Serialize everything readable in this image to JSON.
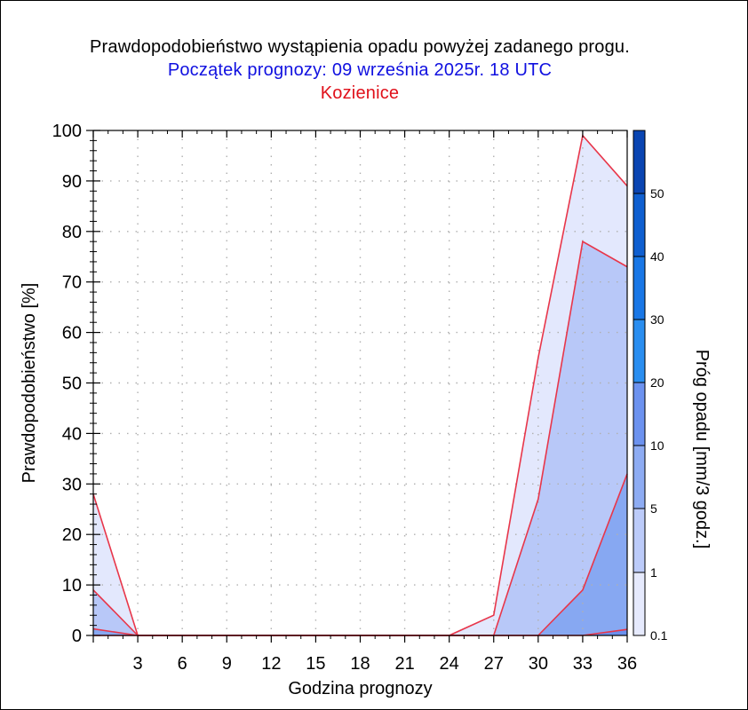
{
  "header": {
    "title": "Prawdopodobieństwo wystąpienia opadu powyżej zadanego progu.",
    "subtitle": "Początek prognozy: 09 września 2025r. 18 UTC",
    "location": "Kozienice"
  },
  "colors": {
    "title": "#000000",
    "subtitle": "#1010e0",
    "location": "#e0101a",
    "outline": "#e8364a",
    "grid": "#b0b0b0"
  },
  "chart_data": {
    "type": "area",
    "title": "Prawdopodobieństwo wystąpienia opadu powyżej zadanego progu.",
    "xlabel": "Godzina prognozy",
    "ylabel": "Prawdopodobieństwo [%]",
    "xlim": [
      0,
      36
    ],
    "ylim": [
      0,
      100
    ],
    "x": [
      0,
      3,
      6,
      9,
      12,
      15,
      18,
      21,
      24,
      27,
      30,
      33,
      36
    ],
    "x_tick_labels": [
      "3",
      "6",
      "9",
      "12",
      "15",
      "18",
      "21",
      "24",
      "27",
      "30",
      "33",
      "36"
    ],
    "y_ticks": [
      0,
      10,
      20,
      30,
      40,
      50,
      60,
      70,
      80,
      90,
      100
    ],
    "grid": true,
    "series": [
      {
        "name": "0.1",
        "color": "#e3e8fd",
        "values": [
          28,
          0,
          0,
          0,
          0,
          0,
          0,
          0,
          0,
          4,
          55,
          99,
          89
        ]
      },
      {
        "name": "1",
        "color": "#b8c8f8",
        "values": [
          9,
          0,
          0,
          0,
          0,
          0,
          0,
          0,
          0,
          0,
          27,
          78,
          73
        ]
      },
      {
        "name": "5",
        "color": "#87a8f2",
        "values": [
          1.3,
          0,
          0,
          0,
          0,
          0,
          0,
          0,
          0,
          0,
          0,
          9,
          32
        ]
      },
      {
        "name": "10",
        "color": "#6a90ee",
        "values": [
          0,
          0,
          0,
          0,
          0,
          0,
          0,
          0,
          0,
          0,
          0,
          0,
          1.2
        ]
      }
    ],
    "colorbar": {
      "title": "Próg opadu [mm/3 godz.]",
      "labels": [
        "0.1",
        "1",
        "5",
        "10",
        "20",
        "30",
        "40",
        "50"
      ],
      "colors": [
        "#e6eafd",
        "#bccbf9",
        "#8eacf3",
        "#6c92ef",
        "#2a8ef0",
        "#1977e6",
        "#0f5fd0",
        "#0a45b2",
        "#062f8c"
      ]
    }
  }
}
